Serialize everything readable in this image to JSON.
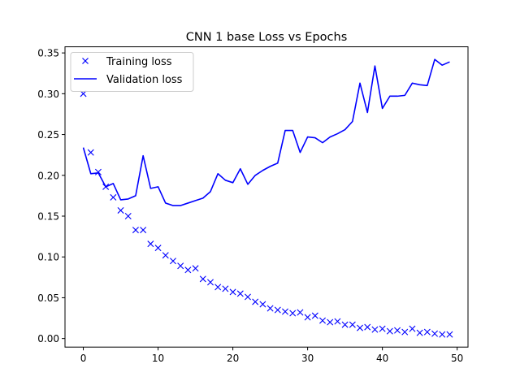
{
  "chart_data": {
    "type": "line",
    "title": "CNN 1 base Loss vs Epochs",
    "xlabel": "",
    "ylabel": "",
    "xlim": [
      -2.45,
      51.45
    ],
    "ylim": [
      -0.0105,
      0.3575
    ],
    "xticks": [
      0,
      10,
      20,
      30,
      40,
      50
    ],
    "xtick_labels": [
      "0",
      "10",
      "20",
      "30",
      "40",
      "50"
    ],
    "yticks": [
      0.0,
      0.05,
      0.1,
      0.15,
      0.2,
      0.25,
      0.3,
      0.35
    ],
    "ytick_labels": [
      "0.00",
      "0.05",
      "0.10",
      "0.15",
      "0.20",
      "0.25",
      "0.30",
      "0.35"
    ],
    "grid": false,
    "legend_position": "top-left",
    "x": [
      0,
      1,
      2,
      3,
      4,
      5,
      6,
      7,
      8,
      9,
      10,
      11,
      12,
      13,
      14,
      15,
      16,
      17,
      18,
      19,
      20,
      21,
      22,
      23,
      24,
      25,
      26,
      27,
      28,
      29,
      30,
      31,
      32,
      33,
      34,
      35,
      36,
      37,
      38,
      39,
      40,
      41,
      42,
      43,
      44,
      45,
      46,
      47,
      48,
      49
    ],
    "series": [
      {
        "name": "Training loss",
        "style": "markers-x",
        "color": "#0000ff",
        "values": [
          0.3,
          0.228,
          0.204,
          0.186,
          0.173,
          0.157,
          0.15,
          0.133,
          0.133,
          0.116,
          0.111,
          0.102,
          0.095,
          0.089,
          0.084,
          0.086,
          0.073,
          0.069,
          0.063,
          0.061,
          0.057,
          0.055,
          0.051,
          0.045,
          0.042,
          0.037,
          0.035,
          0.033,
          0.031,
          0.032,
          0.026,
          0.028,
          0.022,
          0.02,
          0.021,
          0.017,
          0.017,
          0.013,
          0.014,
          0.011,
          0.012,
          0.009,
          0.01,
          0.008,
          0.012,
          0.007,
          0.008,
          0.006,
          0.005,
          0.005
        ]
      },
      {
        "name": "Validation loss",
        "style": "line",
        "color": "#0000ff",
        "values": [
          0.234,
          0.202,
          0.203,
          0.186,
          0.19,
          0.17,
          0.171,
          0.175,
          0.224,
          0.184,
          0.186,
          0.166,
          0.163,
          0.163,
          0.166,
          0.169,
          0.172,
          0.18,
          0.202,
          0.194,
          0.191,
          0.208,
          0.189,
          0.2,
          0.206,
          0.211,
          0.215,
          0.255,
          0.255,
          0.228,
          0.247,
          0.246,
          0.24,
          0.247,
          0.251,
          0.256,
          0.266,
          0.313,
          0.277,
          0.334,
          0.282,
          0.297,
          0.297,
          0.298,
          0.313,
          0.311,
          0.31,
          0.342,
          0.335,
          0.339
        ]
      }
    ]
  }
}
